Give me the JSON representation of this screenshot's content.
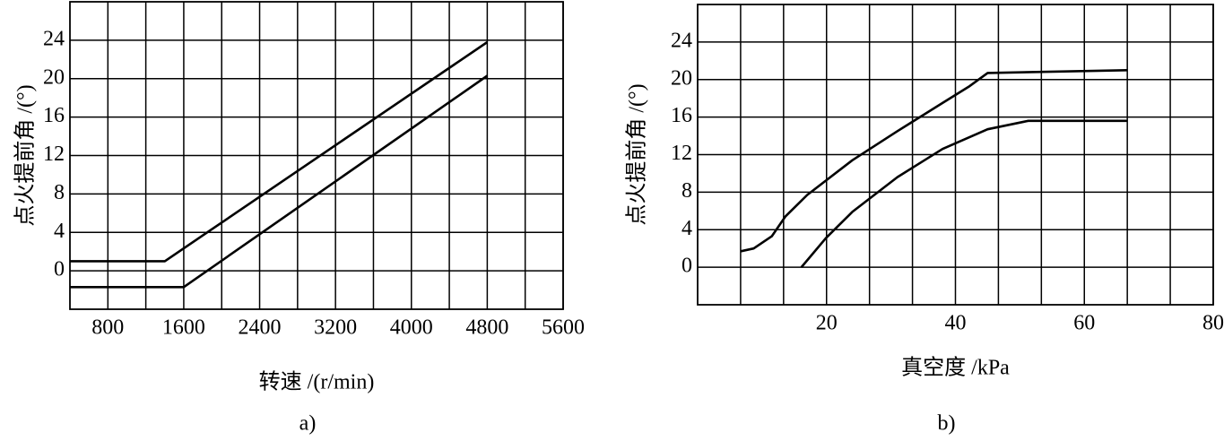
{
  "chart_data": [
    {
      "type": "line",
      "title": "a)",
      "x_label": "转速 /(r/min)",
      "y_label": "点火提前角 /(°)",
      "xlim": [
        400,
        5600
      ],
      "xticks": [
        800,
        1600,
        2400,
        3200,
        4000,
        4800,
        5600
      ],
      "ylim": [
        -4,
        28
      ],
      "yticks": [
        0,
        4,
        8,
        12,
        16,
        20,
        24
      ],
      "grid": true,
      "series": [
        {
          "color": "#000000",
          "x": [
            400,
            1400,
            4800
          ],
          "values": [
            1,
            1,
            23.8
          ]
        },
        {
          "color": "#000000",
          "x": [
            400,
            1600,
            4800
          ],
          "values": [
            -1.7,
            -1.7,
            20.3
          ]
        }
      ]
    },
    {
      "type": "line",
      "title": "b)",
      "x_label": "真空度 /kPa",
      "y_label": "点火提前角 /(°)",
      "xlim": [
        0,
        80
      ],
      "xticks": [
        20,
        40,
        60,
        80
      ],
      "ylim": [
        -4,
        28
      ],
      "yticks": [
        0,
        4,
        8,
        12,
        16,
        20,
        24
      ],
      "grid": true,
      "series": [
        {
          "color": "#000000",
          "x": [
            6.7,
            8.7,
            11.5,
            13.6,
            17,
            24,
            31,
            38,
            42.2,
            45,
            66.7
          ],
          "values": [
            1.7,
            2.0,
            3.3,
            5.4,
            7.7,
            11.4,
            14.5,
            17.5,
            19.3,
            20.7,
            21.0
          ]
        },
        {
          "color": "#000000",
          "x": [
            16.1,
            19.9,
            24,
            31,
            38,
            45,
            51.3,
            66.7
          ],
          "values": [
            0,
            3.1,
            5.9,
            9.6,
            12.6,
            14.7,
            15.6,
            15.6
          ]
        }
      ]
    }
  ]
}
